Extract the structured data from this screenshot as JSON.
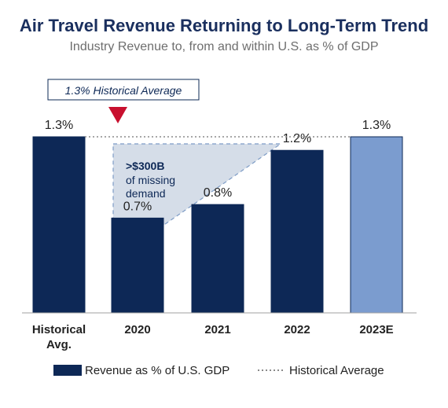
{
  "chart_data": {
    "type": "bar",
    "title": "Air Travel Revenue Returning to Long-Term Trend",
    "subtitle": "Industry Revenue to, from and within U.S. as % of GDP",
    "categories": [
      "Historical Avg.",
      "2020",
      "2021",
      "2022",
      "2023E"
    ],
    "values": [
      1.3,
      0.7,
      0.8,
      1.2,
      1.3
    ],
    "value_labels": [
      "1.3%",
      "0.7%",
      "0.8%",
      "1.2%",
      "1.3%"
    ],
    "ylim": [
      0,
      1.3
    ],
    "grid": false,
    "reference_line": {
      "value": 1.3,
      "label": "1.3% Historical Average",
      "style": "dotted"
    },
    "annotation": {
      "text_bold": ">$300B",
      "text_lines": [
        "of missing",
        "demand"
      ]
    },
    "legend": {
      "placement": "bottom",
      "items": [
        {
          "label": "Revenue as % of U.S. GDP",
          "type": "bar"
        },
        {
          "label": "Historical Average",
          "type": "dotted-line"
        }
      ]
    },
    "colors": {
      "title": "#1a2f5e",
      "subtitle": "#6e6e6e",
      "bar_primary": "#0d2856",
      "bar_estimate": "#7b9ccf",
      "reference_line": "#8a8a8a",
      "marker": "#c8102e",
      "annotation_fill": "#d5dde8",
      "annotation_stroke": "#7e9cc6",
      "text": "#222222"
    }
  }
}
